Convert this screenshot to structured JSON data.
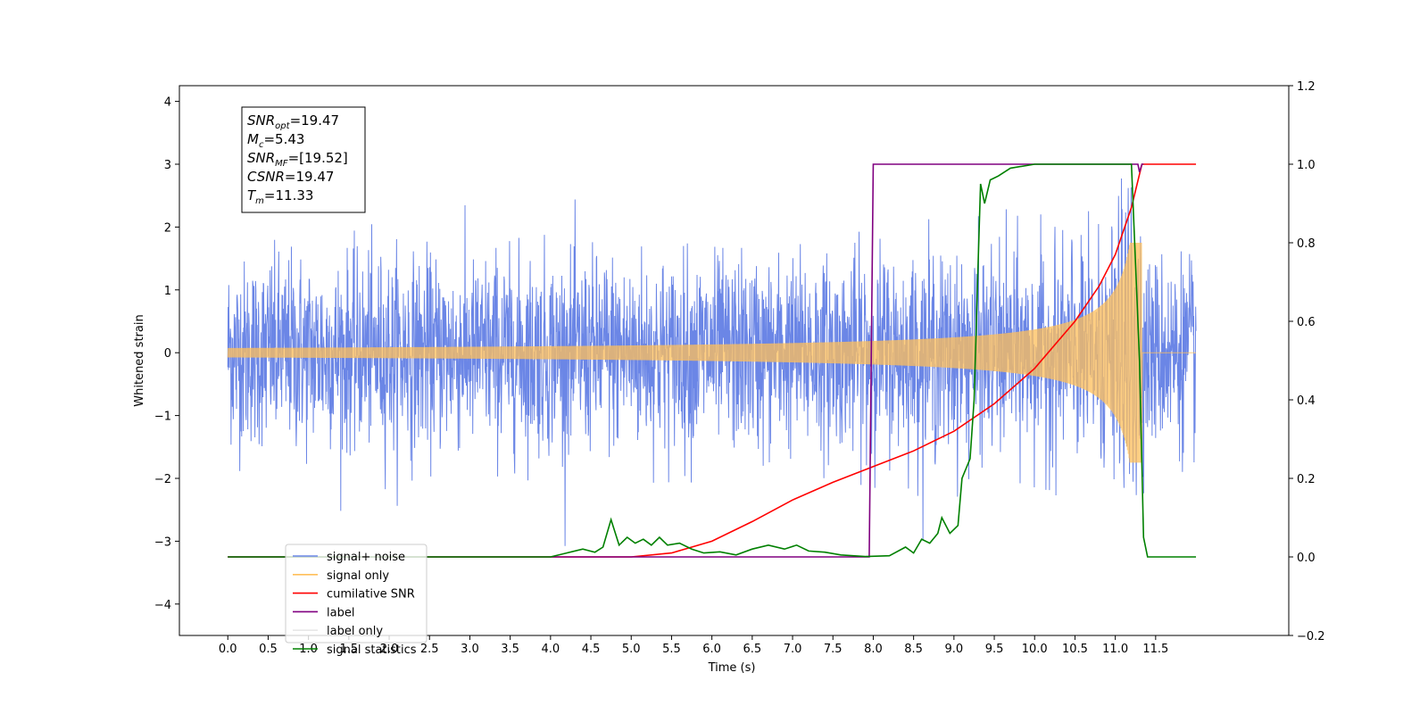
{
  "chart_data": {
    "type": "line",
    "xlabel": "Time (s)",
    "ylabel": "Whitened strain",
    "x_ticks": [
      "0.0",
      "0.5",
      "1.0",
      "1.5",
      "2.0",
      "2.5",
      "3.0",
      "3.5",
      "4.0",
      "4.5",
      "5.0",
      "5.5",
      "6.0",
      "6.5",
      "7.0",
      "7.5",
      "8.0",
      "8.5",
      "9.0",
      "9.5",
      "10.0",
      "10.5",
      "11.0",
      "11.5"
    ],
    "y_ticks_left": [
      "4",
      "3",
      "2",
      "1",
      "0",
      "−1",
      "−2",
      "−3",
      "−4"
    ],
    "y_ticks_right": [
      "1.2",
      "1.0",
      "0.8",
      "0.6",
      "0.4",
      "0.2",
      "0.0",
      "−0.2"
    ],
    "xlim": [
      -0.6,
      13.15
    ],
    "ylim_left": [
      -4.5,
      4.25
    ],
    "ylim_right": [
      -0.2,
      1.2
    ],
    "info_box": [
      {
        "main": "SNR",
        "sub": "opt",
        "value": "=19.47"
      },
      {
        "main": "M",
        "sub": "c",
        "value": "=5.43"
      },
      {
        "main": "SNR",
        "sub": "MF",
        "value": "=[19.52]"
      },
      {
        "main": "CSNR",
        "sub": "",
        "value": "=19.47"
      },
      {
        "main": "T",
        "sub": "m",
        "value": "=11.33"
      }
    ],
    "noise_amplitude": 1.2,
    "merger_time": 11.33,
    "signal_duration": 12.0,
    "series": [
      {
        "name": "signal+ noise",
        "color": "#6b86e6",
        "axis": "left"
      },
      {
        "name": "signal only",
        "color": "#ffbf5a",
        "axis": "left"
      },
      {
        "name": "cumilative SNR",
        "color": "#ff0000",
        "axis": "right",
        "points": [
          [
            0,
            0
          ],
          [
            5.0,
            0.0
          ],
          [
            5.5,
            0.01
          ],
          [
            6.0,
            0.04
          ],
          [
            6.5,
            0.09
          ],
          [
            7.0,
            0.145
          ],
          [
            7.5,
            0.19
          ],
          [
            8.0,
            0.23
          ],
          [
            8.5,
            0.27
          ],
          [
            9.0,
            0.32
          ],
          [
            9.5,
            0.39
          ],
          [
            10.0,
            0.48
          ],
          [
            10.5,
            0.6
          ],
          [
            10.8,
            0.69
          ],
          [
            11.0,
            0.77
          ],
          [
            11.2,
            0.89
          ],
          [
            11.33,
            1.0
          ],
          [
            11.35,
            1.0
          ],
          [
            12.0,
            1.0
          ]
        ]
      },
      {
        "name": "label",
        "color": "#800080",
        "axis": "right",
        "points": [
          [
            0,
            0
          ],
          [
            7.95,
            0
          ],
          [
            8.0,
            1.0
          ],
          [
            11.28,
            1.0
          ],
          [
            11.3,
            0.98
          ],
          [
            11.33,
            1.0
          ],
          [
            11.35,
            1.0
          ]
        ]
      },
      {
        "name": "label only",
        "color": "#e8e8e8",
        "axis": "right",
        "legend_only": true
      },
      {
        "name": "signal statistics",
        "color": "#008000",
        "axis": "right",
        "points": [
          [
            0,
            0
          ],
          [
            4.0,
            0
          ],
          [
            4.2,
            0.01
          ],
          [
            4.4,
            0.02
          ],
          [
            4.55,
            0.012
          ],
          [
            4.65,
            0.025
          ],
          [
            4.75,
            0.095
          ],
          [
            4.85,
            0.03
          ],
          [
            4.95,
            0.05
          ],
          [
            5.05,
            0.035
          ],
          [
            5.15,
            0.045
          ],
          [
            5.25,
            0.03
          ],
          [
            5.35,
            0.05
          ],
          [
            5.45,
            0.03
          ],
          [
            5.6,
            0.035
          ],
          [
            5.75,
            0.02
          ],
          [
            5.9,
            0.01
          ],
          [
            6.1,
            0.013
          ],
          [
            6.3,
            0.005
          ],
          [
            6.5,
            0.02
          ],
          [
            6.7,
            0.03
          ],
          [
            6.9,
            0.02
          ],
          [
            7.05,
            0.03
          ],
          [
            7.2,
            0.015
          ],
          [
            7.4,
            0.012
          ],
          [
            7.6,
            0.005
          ],
          [
            7.9,
            0.001
          ],
          [
            8.2,
            0.003
          ],
          [
            8.4,
            0.025
          ],
          [
            8.5,
            0.01
          ],
          [
            8.6,
            0.045
          ],
          [
            8.7,
            0.035
          ],
          [
            8.8,
            0.06
          ],
          [
            8.85,
            0.1
          ],
          [
            8.95,
            0.06
          ],
          [
            9.05,
            0.08
          ],
          [
            9.1,
            0.2
          ],
          [
            9.2,
            0.25
          ],
          [
            9.25,
            0.4
          ],
          [
            9.3,
            0.75
          ],
          [
            9.33,
            0.95
          ],
          [
            9.38,
            0.9
          ],
          [
            9.45,
            0.96
          ],
          [
            9.55,
            0.97
          ],
          [
            9.7,
            0.99
          ],
          [
            10.0,
            1.0
          ],
          [
            11.2,
            1.0
          ],
          [
            11.3,
            0.5
          ],
          [
            11.35,
            0.05
          ],
          [
            11.4,
            0.0
          ],
          [
            12.0,
            0.0
          ]
        ]
      }
    ],
    "legend_placement": "lower-left"
  }
}
